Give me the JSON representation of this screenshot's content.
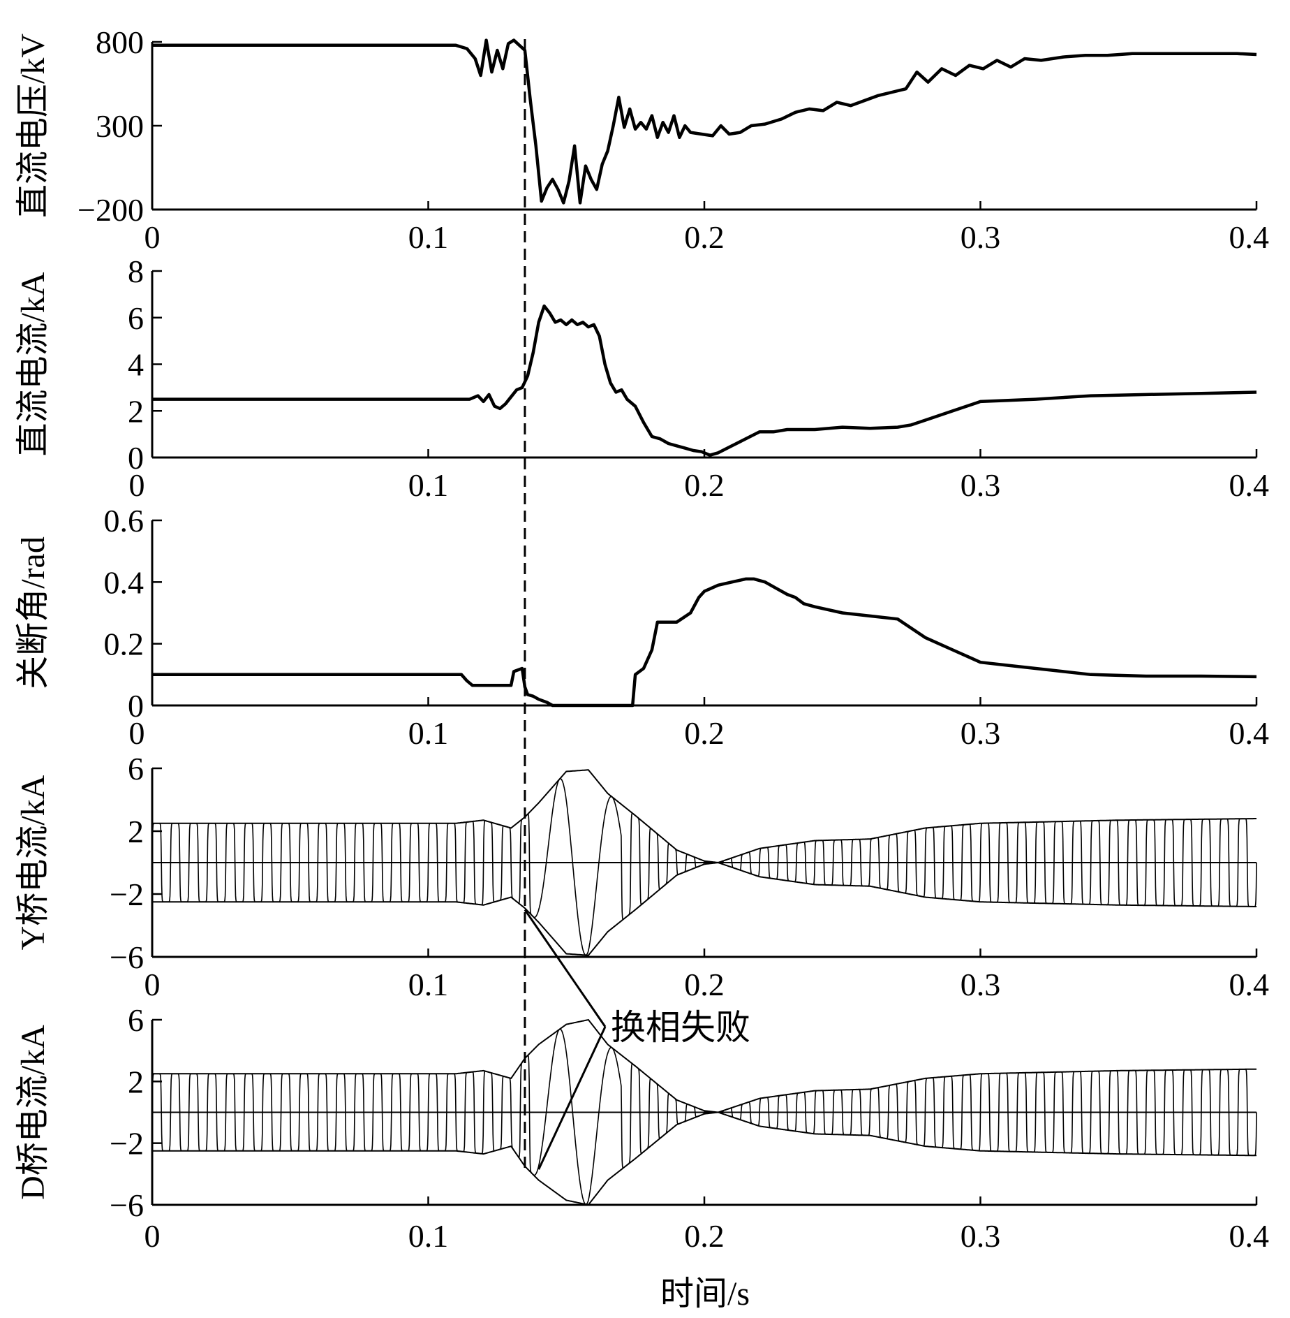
{
  "chart_data": [
    {
      "type": "line",
      "ylabel": "直流电压/kV",
      "xlim": [
        0,
        0.4
      ],
      "ylim": [
        -200,
        800
      ],
      "yticks": [
        -200,
        300,
        800
      ],
      "ytick_labels": [
        "−200",
        "300",
        "800"
      ],
      "xtick_labels": [
        "0",
        "0.1",
        "0.2",
        "0.3",
        "0.4"
      ],
      "series": [
        {
          "name": "直流电压",
          "x": [
            0,
            0.05,
            0.11,
            0.114,
            0.117,
            0.119,
            0.121,
            0.123,
            0.125,
            0.127,
            0.129,
            0.131,
            0.133,
            0.135,
            0.137,
            0.139,
            0.141,
            0.143,
            0.145,
            0.147,
            0.149,
            0.151,
            0.153,
            0.155,
            0.157,
            0.159,
            0.161,
            0.163,
            0.165,
            0.167,
            0.169,
            0.171,
            0.173,
            0.175,
            0.177,
            0.179,
            0.181,
            0.183,
            0.185,
            0.187,
            0.189,
            0.191,
            0.193,
            0.195,
            0.199,
            0.203,
            0.206,
            0.209,
            0.213,
            0.217,
            0.222,
            0.228,
            0.233,
            0.238,
            0.243,
            0.248,
            0.253,
            0.258,
            0.263,
            0.268,
            0.273,
            0.277,
            0.281,
            0.286,
            0.291,
            0.296,
            0.301,
            0.306,
            0.311,
            0.316,
            0.322,
            0.33,
            0.338,
            0.346,
            0.355,
            0.365,
            0.375,
            0.385,
            0.393,
            0.4
          ],
          "values": [
            780,
            780,
            780,
            760,
            700,
            600,
            810,
            620,
            750,
            640,
            790,
            810,
            780,
            750,
            450,
            180,
            -150,
            -70,
            -20,
            -80,
            -160,
            -30,
            180,
            -160,
            60,
            -20,
            -80,
            70,
            150,
            300,
            470,
            290,
            400,
            280,
            320,
            280,
            360,
            230,
            320,
            260,
            360,
            230,
            300,
            260,
            250,
            240,
            300,
            250,
            260,
            300,
            310,
            340,
            380,
            400,
            390,
            440,
            420,
            450,
            480,
            500,
            520,
            620,
            560,
            640,
            600,
            660,
            640,
            690,
            650,
            700,
            690,
            710,
            720,
            720,
            730,
            730,
            730,
            730,
            730,
            725
          ]
        }
      ]
    },
    {
      "type": "line",
      "ylabel": "直流电流/kA",
      "xlim": [
        0,
        0.4
      ],
      "ylim": [
        0,
        8
      ],
      "yticks": [
        0,
        2,
        4,
        6,
        8
      ],
      "ytick_labels": [
        "0",
        "2",
        "4",
        "6",
        "8"
      ],
      "xtick_labels": [
        "0.1",
        "0.2",
        "0.3",
        "0.4"
      ],
      "series": [
        {
          "name": "直流电流",
          "x": [
            0,
            0.05,
            0.11,
            0.115,
            0.118,
            0.12,
            0.122,
            0.124,
            0.126,
            0.128,
            0.13,
            0.132,
            0.134,
            0.136,
            0.138,
            0.14,
            0.142,
            0.144,
            0.146,
            0.148,
            0.15,
            0.152,
            0.154,
            0.156,
            0.158,
            0.16,
            0.162,
            0.164,
            0.166,
            0.168,
            0.17,
            0.172,
            0.175,
            0.178,
            0.181,
            0.184,
            0.187,
            0.19,
            0.193,
            0.196,
            0.199,
            0.202,
            0.205,
            0.21,
            0.215,
            0.22,
            0.225,
            0.23,
            0.24,
            0.25,
            0.26,
            0.27,
            0.275,
            0.28,
            0.29,
            0.3,
            0.32,
            0.34,
            0.36,
            0.38,
            0.4
          ],
          "values": [
            2.5,
            2.5,
            2.5,
            2.5,
            2.65,
            2.4,
            2.7,
            2.2,
            2.1,
            2.3,
            2.6,
            2.9,
            3.0,
            3.5,
            4.5,
            5.8,
            6.5,
            6.2,
            5.8,
            5.9,
            5.7,
            5.9,
            5.7,
            5.8,
            5.6,
            5.7,
            5.2,
            4.0,
            3.2,
            2.8,
            2.9,
            2.5,
            2.2,
            1.5,
            0.9,
            0.8,
            0.6,
            0.5,
            0.4,
            0.3,
            0.25,
            0.1,
            0.2,
            0.5,
            0.8,
            1.1,
            1.1,
            1.2,
            1.2,
            1.3,
            1.25,
            1.3,
            1.4,
            1.6,
            2.0,
            2.4,
            2.5,
            2.65,
            2.7,
            2.75,
            2.8
          ]
        }
      ]
    },
    {
      "type": "line",
      "ylabel": "关断角/rad",
      "xlim": [
        0,
        0.4
      ],
      "ylim": [
        0,
        0.6
      ],
      "yticks": [
        0,
        0.2,
        0.4,
        0.6
      ],
      "ytick_labels": [
        "0",
        "0.2",
        "0.4",
        "0.6"
      ],
      "xtick_labels": [
        "0.1",
        "0.2",
        "0.3",
        "0.4"
      ],
      "series": [
        {
          "name": "关断角",
          "x": [
            0,
            0.05,
            0.112,
            0.114,
            0.116,
            0.13,
            0.131,
            0.134,
            0.135,
            0.136,
            0.138,
            0.14,
            0.143,
            0.145,
            0.16,
            0.17,
            0.174,
            0.175,
            0.178,
            0.181,
            0.183,
            0.19,
            0.195,
            0.198,
            0.2,
            0.205,
            0.21,
            0.215,
            0.218,
            0.222,
            0.226,
            0.23,
            0.233,
            0.236,
            0.24,
            0.25,
            0.26,
            0.27,
            0.28,
            0.285,
            0.29,
            0.295,
            0.3,
            0.31,
            0.32,
            0.33,
            0.34,
            0.36,
            0.38,
            0.4
          ],
          "values": [
            0.1,
            0.1,
            0.1,
            0.08,
            0.065,
            0.065,
            0.11,
            0.12,
            0.06,
            0.035,
            0.03,
            0.02,
            0.01,
            0.0,
            0.0,
            0.0,
            0.0,
            0.1,
            0.12,
            0.18,
            0.27,
            0.27,
            0.3,
            0.35,
            0.37,
            0.39,
            0.4,
            0.41,
            0.41,
            0.4,
            0.38,
            0.36,
            0.35,
            0.33,
            0.32,
            0.3,
            0.29,
            0.28,
            0.22,
            0.2,
            0.18,
            0.16,
            0.14,
            0.13,
            0.12,
            0.11,
            0.1,
            0.095,
            0.095,
            0.093
          ]
        }
      ]
    },
    {
      "type": "line",
      "ylabel": "Y桥电流/kA",
      "xlim": [
        0,
        0.4
      ],
      "ylim": [
        -6,
        6
      ],
      "yticks": [
        -6,
        -2,
        2,
        6
      ],
      "ytick_labels": [
        "−6",
        "−2",
        "2",
        "6"
      ],
      "xtick_labels": [
        "0",
        "0.1",
        "0.2",
        "0.3",
        "0.4"
      ],
      "oscillation_frequency_hz": 150,
      "envelope": {
        "x": [
          0,
          0.11,
          0.12,
          0.13,
          0.135,
          0.14,
          0.15,
          0.158,
          0.165,
          0.175,
          0.19,
          0.2,
          0.205,
          0.21,
          0.22,
          0.24,
          0.26,
          0.28,
          0.3,
          0.35,
          0.4
        ],
        "upper": [
          2.5,
          2.5,
          2.7,
          2.2,
          2.9,
          3.8,
          5.8,
          5.9,
          4.4,
          3.0,
          0.8,
          0.1,
          0.0,
          0.3,
          0.9,
          1.4,
          1.5,
          2.2,
          2.5,
          2.7,
          2.8
        ],
        "lower": [
          -2.5,
          -2.5,
          -2.7,
          -2.2,
          -2.9,
          -3.8,
          -5.8,
          -5.9,
          -4.4,
          -3.0,
          -0.8,
          -0.1,
          0.0,
          -0.3,
          -0.9,
          -1.4,
          -1.5,
          -2.2,
          -2.5,
          -2.7,
          -2.8
        ]
      }
    },
    {
      "type": "line",
      "ylabel": "D桥电流/kA",
      "xlabel": "时间/s",
      "xlim": [
        0,
        0.4
      ],
      "ylim": [
        -6,
        6
      ],
      "yticks": [
        -6,
        -2,
        2,
        6
      ],
      "ytick_labels": [
        "−6",
        "−2",
        "2",
        "6"
      ],
      "xtick_labels": [
        "0",
        "0.1",
        "0.2",
        "0.3",
        "0.4"
      ],
      "oscillation_frequency_hz": 150,
      "envelope": {
        "x": [
          0,
          0.11,
          0.12,
          0.13,
          0.135,
          0.14,
          0.15,
          0.158,
          0.165,
          0.175,
          0.19,
          0.2,
          0.205,
          0.21,
          0.22,
          0.24,
          0.26,
          0.28,
          0.3,
          0.35,
          0.4
        ],
        "upper": [
          2.5,
          2.5,
          2.7,
          2.2,
          3.5,
          4.4,
          5.7,
          6.0,
          4.4,
          3.0,
          0.8,
          0.1,
          0.0,
          0.3,
          0.9,
          1.4,
          1.5,
          2.2,
          2.5,
          2.7,
          2.8
        ],
        "lower": [
          -2.5,
          -2.5,
          -2.7,
          -2.2,
          -3.5,
          -4.4,
          -5.7,
          -6.0,
          -4.4,
          -3.0,
          -0.8,
          -0.1,
          0.0,
          -0.3,
          -0.9,
          -1.4,
          -1.5,
          -2.2,
          -2.5,
          -2.7,
          -2.8
        ]
      }
    }
  ],
  "annotation": {
    "text": "换相失败",
    "marker_time": 0.135,
    "arrow_targets": [
      {
        "panel": 3,
        "x": 0.135,
        "y": -3.0
      },
      {
        "panel": 4,
        "x": 0.14,
        "y": -3.7
      }
    ]
  }
}
